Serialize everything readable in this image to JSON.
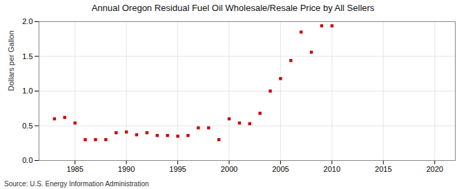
{
  "chart_data": {
    "type": "scatter",
    "title": "Annual Oregon Residual Fuel Oil Wholesale/Resale Price by All Sellers",
    "ylabel": "Dollars per Gallon",
    "source": "Source: U.S. Energy Information Administration",
    "x": [
      1983,
      1984,
      1985,
      1986,
      1987,
      1988,
      1989,
      1990,
      1991,
      1992,
      1993,
      1994,
      1995,
      1996,
      1997,
      1998,
      1999,
      2000,
      2001,
      2002,
      2003,
      2004,
      2005,
      2006,
      2007,
      2008,
      2009,
      2010
    ],
    "values": [
      0.6,
      0.62,
      0.54,
      0.3,
      0.3,
      0.3,
      0.4,
      0.41,
      0.37,
      0.4,
      0.36,
      0.36,
      0.35,
      0.36,
      0.47,
      0.47,
      0.3,
      0.6,
      0.54,
      0.53,
      0.68,
      1.0,
      1.18,
      1.44,
      1.85,
      1.56,
      1.94,
      1.94
    ],
    "color": "#cc0000",
    "marker": "square",
    "xlim": [
      1981.5,
      2022
    ],
    "ylim": [
      0.0,
      2.0
    ],
    "xticks": [
      1985,
      1990,
      1995,
      2000,
      2005,
      2010,
      2015,
      2020
    ],
    "yticks": [
      {
        "value": 0.0,
        "label": "0.0"
      },
      {
        "value": 0.5,
        "label": "0.5"
      },
      {
        "value": 1.0,
        "label": "1.0"
      },
      {
        "value": 1.5,
        "label": "1.5"
      },
      {
        "value": 2.0,
        "label": "2.0"
      }
    ],
    "grid": true
  }
}
